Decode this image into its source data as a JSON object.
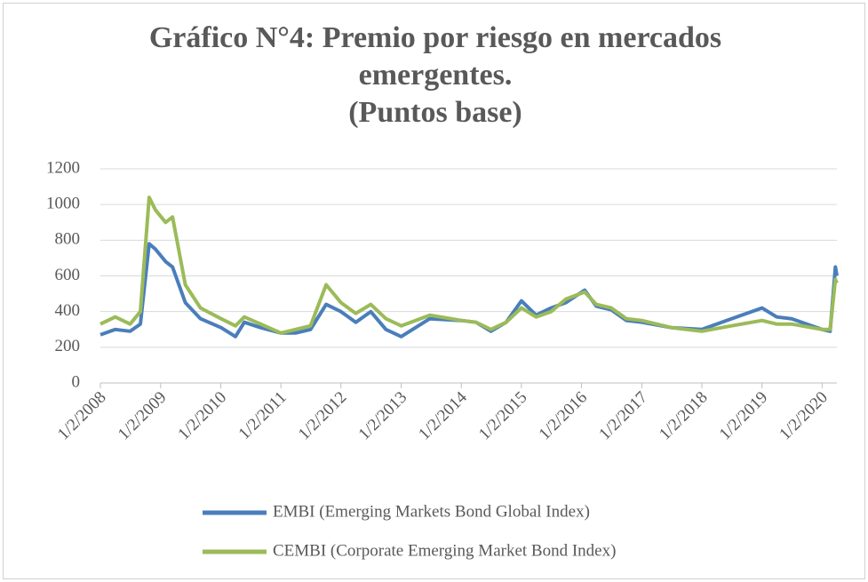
{
  "chart_data": {
    "type": "line",
    "title": "Gráfico N°4: Premio por riesgo en mercados emergentes.",
    "subtitle": "(Puntos base)",
    "x": [
      "2008-01-02",
      "2008-04-01",
      "2008-07-01",
      "2008-09-01",
      "2008-10-24",
      "2008-12-01",
      "2009-02-01",
      "2009-03-15",
      "2009-06-01",
      "2009-09-01",
      "2010-01-04",
      "2010-04-01",
      "2010-05-25",
      "2010-09-01",
      "2011-01-03",
      "2011-04-01",
      "2011-07-01",
      "2011-10-04",
      "2012-01-02",
      "2012-04-01",
      "2012-07-01",
      "2012-10-01",
      "2013-01-02",
      "2013-06-24",
      "2014-01-02",
      "2014-04-01",
      "2014-07-01",
      "2014-10-01",
      "2015-01-02",
      "2015-04-01",
      "2015-07-01",
      "2015-09-29",
      "2016-01-21",
      "2016-04-01",
      "2016-07-01",
      "2016-10-01",
      "2017-01-02",
      "2017-07-01",
      "2018-01-02",
      "2018-07-01",
      "2019-01-02",
      "2019-04-01",
      "2019-07-01",
      "2020-01-02",
      "2020-02-20",
      "2020-03-23",
      "2020-04-01"
    ],
    "series": [
      {
        "name": "EMBI (Emerging Markets Bond Global Index)",
        "color": "#4a7ebb",
        "values": [
          270,
          300,
          290,
          330,
          780,
          750,
          680,
          650,
          450,
          360,
          310,
          260,
          340,
          310,
          280,
          280,
          300,
          440,
          400,
          340,
          400,
          300,
          260,
          360,
          350,
          340,
          290,
          340,
          460,
          380,
          420,
          450,
          520,
          430,
          410,
          350,
          340,
          310,
          300,
          360,
          420,
          370,
          360,
          300,
          290,
          650,
          600
        ]
      },
      {
        "name": "CEMBI (Corporate Emerging Market Bond Index)",
        "color": "#9bbb59",
        "values": [
          330,
          370,
          330,
          400,
          1040,
          970,
          900,
          930,
          550,
          420,
          360,
          320,
          370,
          330,
          280,
          300,
          320,
          550,
          450,
          390,
          440,
          360,
          320,
          380,
          350,
          340,
          300,
          340,
          420,
          370,
          400,
          470,
          510,
          440,
          420,
          360,
          350,
          310,
          290,
          320,
          350,
          330,
          330,
          300,
          300,
          580,
          560
        ]
      }
    ],
    "xlim": [
      "2008-01-02",
      "2020-04-01"
    ],
    "xticks": [
      {
        "value": "2008-01-02",
        "label": "1/2/2008"
      },
      {
        "value": "2009-01-02",
        "label": "1/2/2009"
      },
      {
        "value": "2010-01-02",
        "label": "1/2/2010"
      },
      {
        "value": "2011-01-02",
        "label": "1/2/2011"
      },
      {
        "value": "2012-01-02",
        "label": "1/2/2012"
      },
      {
        "value": "2013-01-02",
        "label": "1/2/2013"
      },
      {
        "value": "2014-01-02",
        "label": "1/2/2014"
      },
      {
        "value": "2015-01-02",
        "label": "1/2/2015"
      },
      {
        "value": "2016-01-02",
        "label": "1/2/2016"
      },
      {
        "value": "2017-01-02",
        "label": "1/2/2017"
      },
      {
        "value": "2018-01-02",
        "label": "1/2/2018"
      },
      {
        "value": "2019-01-02",
        "label": "1/2/2019"
      },
      {
        "value": "2020-01-02",
        "label": "1/2/2020"
      }
    ],
    "ylim": [
      0,
      1200
    ],
    "yticks": [
      0,
      200,
      400,
      600,
      800,
      1000,
      1200
    ],
    "grid": true,
    "legend": "bottom"
  }
}
